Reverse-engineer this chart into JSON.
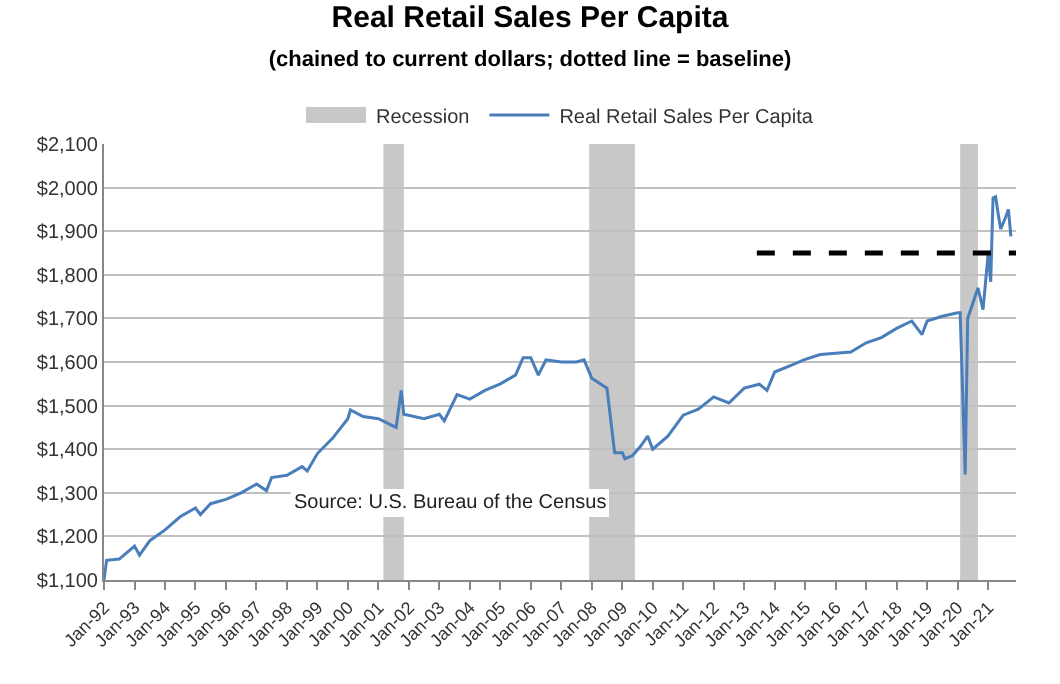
{
  "chart_data": {
    "type": "line",
    "title": "Real Retail Sales Per Capita",
    "subtitle": "(chained to current dollars; dotted line = baseline)",
    "x": [
      "1992-01",
      "1992-02",
      "1992-07",
      "1993-01",
      "1993-03",
      "1993-07",
      "1994-01",
      "1994-07",
      "1995-01",
      "1995-03",
      "1995-07",
      "1996-01",
      "1996-07",
      "1997-01",
      "1997-05",
      "1997-07",
      "1998-01",
      "1998-07",
      "1998-09",
      "1999-01",
      "1999-07",
      "2000-01",
      "2000-02",
      "2000-07",
      "2001-01",
      "2001-08",
      "2001-10",
      "2001-11",
      "2002-07",
      "2003-01",
      "2003-03",
      "2003-08",
      "2004-01",
      "2004-07",
      "2005-01",
      "2005-07",
      "2005-10",
      "2006-01",
      "2006-04",
      "2006-07",
      "2007-01",
      "2007-07",
      "2007-10",
      "2008-01",
      "2008-07",
      "2008-10",
      "2009-01",
      "2009-02",
      "2009-05",
      "2009-08",
      "2009-11",
      "2010-01",
      "2010-07",
      "2011-01",
      "2011-07",
      "2012-01",
      "2012-07",
      "2013-01",
      "2013-07",
      "2013-10",
      "2014-01",
      "2014-07",
      "2015-01",
      "2015-07",
      "2016-01",
      "2016-07",
      "2017-01",
      "2017-07",
      "2018-01",
      "2018-07",
      "2018-11",
      "2019-01",
      "2019-07",
      "2020-01",
      "2020-02",
      "2020-04",
      "2020-05",
      "2020-07",
      "2020-09",
      "2020-11",
      "2021-01",
      "2021-02",
      "2021-03",
      "2021-04",
      "2021-05",
      "2021-06",
      "2021-08",
      "2021-09",
      "2021-10"
    ],
    "series": [
      {
        "name": "Real Retail Sales Per Capita",
        "color": "#4a7ebb",
        "values": [
          1100,
          1145,
          1148,
          1178,
          1157,
          1190,
          1215,
          1245,
          1265,
          1250,
          1275,
          1285,
          1300,
          1320,
          1305,
          1335,
          1340,
          1360,
          1350,
          1390,
          1425,
          1470,
          1490,
          1475,
          1470,
          1450,
          1535,
          1480,
          1470,
          1480,
          1465,
          1525,
          1515,
          1535,
          1550,
          1570,
          1610,
          1610,
          1570,
          1605,
          1600,
          1600,
          1605,
          1563,
          1540,
          1392,
          1392,
          1378,
          1385,
          1405,
          1430,
          1400,
          1430,
          1478,
          1492,
          1520,
          1506,
          1540,
          1549,
          1535,
          1577,
          1591,
          1606,
          1617,
          1620,
          1623,
          1644,
          1656,
          1677,
          1694,
          1663,
          1694,
          1705,
          1713,
          1713,
          1342,
          1700,
          1734,
          1770,
          1720,
          1848,
          1784,
          1976,
          1979,
          1940,
          1905,
          1933,
          1950,
          1888
        ]
      },
      {
        "color": "#000000",
        "line_style": "dashed",
        "x": [
          "2013-06",
          "2021-12"
        ],
        "values": [
          1850,
          1850
        ]
      }
    ],
    "bands": [
      {
        "axis": "x",
        "from": "2001-03",
        "to": "2001-11",
        "label": "Recession",
        "color": "#c8c8c8"
      },
      {
        "axis": "x",
        "from": "2007-12",
        "to": "2009-06",
        "color": "#c8c8c8"
      },
      {
        "axis": "x",
        "from": "2020-02",
        "to": "2020-09",
        "color": "#c8c8c8"
      }
    ],
    "annotations": [
      "Source: U.S. Bureau of the Census"
    ],
    "xlim": [
      "1992-01",
      "2021-12"
    ],
    "xticks": [
      {
        "value": "1992-01",
        "label": "Jan-92"
      },
      {
        "value": "1993-01",
        "label": "Jan-93"
      },
      {
        "value": "1994-01",
        "label": "Jan-94"
      },
      {
        "value": "1995-01",
        "label": "Jan-95"
      },
      {
        "value": "1996-01",
        "label": "Jan-96"
      },
      {
        "value": "1997-01",
        "label": "Jan-97"
      },
      {
        "value": "1998-01",
        "label": "Jan-98"
      },
      {
        "value": "1999-01",
        "label": "Jan-99"
      },
      {
        "value": "2000-01",
        "label": "Jan-00"
      },
      {
        "value": "2001-01",
        "label": "Jan-01"
      },
      {
        "value": "2002-01",
        "label": "Jan-02"
      },
      {
        "value": "2003-01",
        "label": "Jan-03"
      },
      {
        "value": "2004-01",
        "label": "Jan-04"
      },
      {
        "value": "2005-01",
        "label": "Jan-05"
      },
      {
        "value": "2006-01",
        "label": "Jan-06"
      },
      {
        "value": "2007-01",
        "label": "Jan-07"
      },
      {
        "value": "2008-01",
        "label": "Jan-08"
      },
      {
        "value": "2009-01",
        "label": "Jan-09"
      },
      {
        "value": "2010-01",
        "label": "Jan-10"
      },
      {
        "value": "2011-01",
        "label": "Jan-11"
      },
      {
        "value": "2012-01",
        "label": "Jan-12"
      },
      {
        "value": "2013-01",
        "label": "Jan-13"
      },
      {
        "value": "2014-01",
        "label": "Jan-14"
      },
      {
        "value": "2015-01",
        "label": "Jan-15"
      },
      {
        "value": "2016-01",
        "label": "Jan-16"
      },
      {
        "value": "2017-01",
        "label": "Jan-17"
      },
      {
        "value": "2018-01",
        "label": "Jan-18"
      },
      {
        "value": "2019-01",
        "label": "Jan-19"
      },
      {
        "value": "2020-01",
        "label": "Jan-20"
      },
      {
        "value": "2021-01",
        "label": "Jan-21"
      }
    ],
    "ylim": [
      1100,
      2100
    ],
    "yticks": [
      {
        "value": 1100,
        "label": "$1,100"
      },
      {
        "value": 1200,
        "label": "$1,200"
      },
      {
        "value": 1300,
        "label": "$1,300"
      },
      {
        "value": 1400,
        "label": "$1,400"
      },
      {
        "value": 1500,
        "label": "$1,500"
      },
      {
        "value": 1600,
        "label": "$1,600"
      },
      {
        "value": 1700,
        "label": "$1,700"
      },
      {
        "value": 1800,
        "label": "$1,800"
      },
      {
        "value": 1900,
        "label": "$1,900"
      },
      {
        "value": 2000,
        "label": "$2,000"
      },
      {
        "value": 2100,
        "label": "$2,100"
      }
    ],
    "grid": "y",
    "legend": "top",
    "marker": "none"
  }
}
